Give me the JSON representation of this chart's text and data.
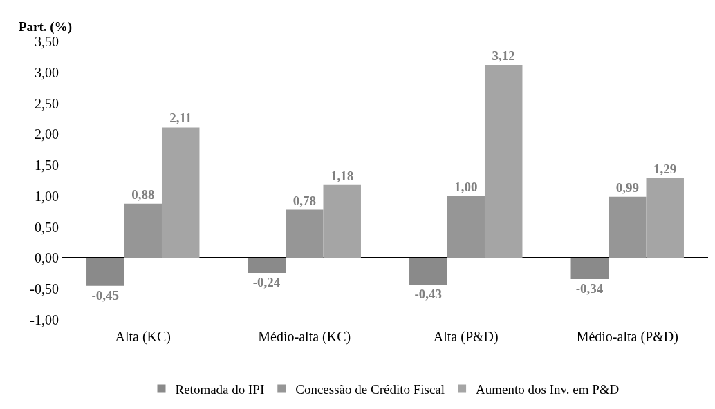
{
  "chart_data": {
    "type": "bar",
    "ylabel": "Part. (%)",
    "categories": [
      "Alta (KC)",
      "Médio-alta (KC)",
      "Alta (P&D)",
      "Médio-alta (P&D)"
    ],
    "series": [
      {
        "name": "Retomada do IPI",
        "color": "#8a8a8a",
        "values": [
          -0.45,
          -0.24,
          -0.43,
          -0.34
        ],
        "value_labels": [
          "-0,45",
          "-0,24",
          "-0,43",
          "-0,34"
        ]
      },
      {
        "name": "Concessão de Crédito Fiscal",
        "color": "#969696",
        "values": [
          0.88,
          0.78,
          1.0,
          0.99
        ],
        "value_labels": [
          "0,88",
          "0,78",
          "1,00",
          "0,99"
        ]
      },
      {
        "name": "Aumento dos Inv. em P&D",
        "color": "#a5a5a5",
        "values": [
          2.11,
          1.18,
          3.12,
          1.29
        ],
        "value_labels": [
          "2,11",
          "1,18",
          "3,12",
          "1,29"
        ]
      }
    ],
    "ylim": [
      -1,
      3.5
    ],
    "yticks": [
      {
        "value": -1,
        "label": "-1,00"
      },
      {
        "value": -0.5,
        "label": "-0,50"
      },
      {
        "value": 0,
        "label": "0,00"
      },
      {
        "value": 0.5,
        "label": "0,50"
      },
      {
        "value": 1,
        "label": "1,00"
      },
      {
        "value": 1.5,
        "label": "1,50"
      },
      {
        "value": 2,
        "label": "2,00"
      },
      {
        "value": 2.5,
        "label": "2,50"
      },
      {
        "value": 3,
        "label": "3,00"
      },
      {
        "value": 3.5,
        "label": "3,50"
      }
    ],
    "legend": "bottom"
  }
}
